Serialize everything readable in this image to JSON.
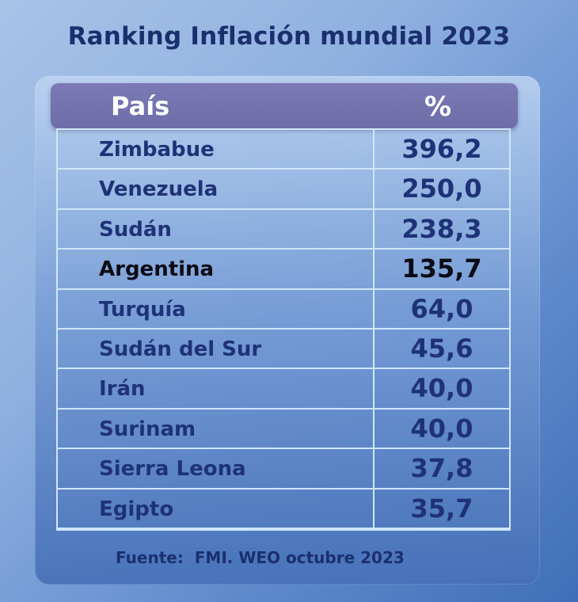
{
  "chart_data": {
    "type": "table",
    "title": "Ranking Inflación mundial 2023",
    "columns": [
      "País",
      "%"
    ],
    "rows": [
      {
        "country": "Zimbabue",
        "value": "396,2"
      },
      {
        "country": "Venezuela",
        "value": "250,0"
      },
      {
        "country": "Sudán",
        "value": "238,3"
      },
      {
        "country": "Argentina",
        "value": "135,7",
        "highlight": true
      },
      {
        "country": "Turquía",
        "value": "64,0"
      },
      {
        "country": "Sudán del Sur",
        "value": "45,6"
      },
      {
        "country": "Irán",
        "value": "40,0"
      },
      {
        "country": "Surinam",
        "value": "40,0"
      },
      {
        "country": "Sierra Leona",
        "value": "37,8"
      },
      {
        "country": "Egipto",
        "value": "35,7"
      }
    ],
    "source": "Fuente:  FMI. WEO octubre 2023"
  },
  "colors": {
    "title": "#1b2f6e",
    "header_bg": "#7b7ab6",
    "row_text": "#1f3277",
    "highlight_text": "#0b0b14",
    "grid": "#cfe6f7"
  }
}
